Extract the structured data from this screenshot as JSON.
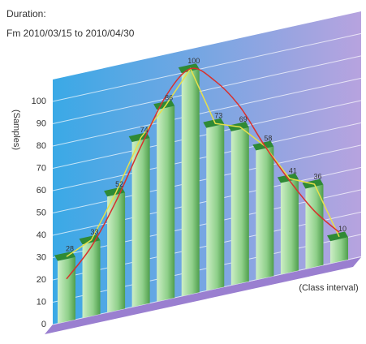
{
  "chart_data": {
    "type": "bar",
    "title": "Duration:",
    "subtitle": "Fm 2010/03/15 to 2010/04/30",
    "y_label": "(Samples)",
    "x_label": "(Class interval)",
    "categories": [
      null,
      null,
      null,
      null,
      null,
      null,
      null,
      null,
      null,
      null,
      null,
      null
    ],
    "values": [
      28,
      33,
      52,
      74,
      86,
      100,
      73,
      69,
      58,
      41,
      36,
      10
    ],
    "color": "#8fd08a",
    "line_color": "#e8e04a",
    "curve": {
      "color": "#d9302c",
      "values": [
        18,
        30,
        48,
        70,
        90,
        100,
        92,
        78,
        58,
        40,
        24,
        12
      ]
    },
    "ylim": [
      0,
      100
    ],
    "yticks": [
      0,
      10,
      20,
      30,
      40,
      50,
      60,
      70,
      80,
      90,
      100
    ],
    "grid": true
  }
}
